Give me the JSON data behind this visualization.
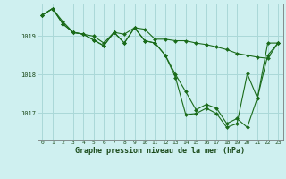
{
  "xlabel": "Graphe pression niveau de la mer (hPa)",
  "background_color": "#cff0f0",
  "grid_color": "#aad8d8",
  "line_color": "#1a6b1a",
  "marker_color": "#1a6b1a",
  "ylim": [
    1016.3,
    1019.85
  ],
  "yticks": [
    1017,
    1018,
    1019
  ],
  "xticks": [
    0,
    1,
    2,
    3,
    4,
    5,
    6,
    7,
    8,
    9,
    10,
    11,
    12,
    13,
    14,
    15,
    16,
    17,
    18,
    19,
    20,
    21,
    22,
    23
  ],
  "series1": [
    1019.55,
    1019.72,
    1019.38,
    1019.1,
    1019.05,
    1019.0,
    1018.82,
    1019.1,
    1019.05,
    1019.22,
    1019.18,
    1018.92,
    1018.92,
    1018.88,
    1018.88,
    1018.82,
    1018.78,
    1018.72,
    1018.65,
    1018.55,
    1018.5,
    1018.45,
    1018.42,
    1018.82
  ],
  "series2": [
    1019.55,
    1019.72,
    1019.32,
    1019.1,
    1019.05,
    1018.9,
    1018.75,
    1019.1,
    1018.82,
    1019.22,
    1018.88,
    1018.82,
    1018.5,
    1017.92,
    1016.95,
    1016.98,
    1017.12,
    1016.98,
    1016.62,
    1016.72,
    1018.02,
    1017.38,
    1018.82,
    1018.82
  ],
  "series3": [
    1019.55,
    1019.72,
    1019.32,
    1019.1,
    1019.05,
    1018.9,
    1018.75,
    1019.1,
    1018.82,
    1019.22,
    1018.88,
    1018.82,
    1018.5,
    1018.0,
    1017.55,
    1017.08,
    1017.22,
    1017.12,
    1016.72,
    1016.85,
    1016.62,
    1017.4,
    1018.5,
    1018.82
  ]
}
